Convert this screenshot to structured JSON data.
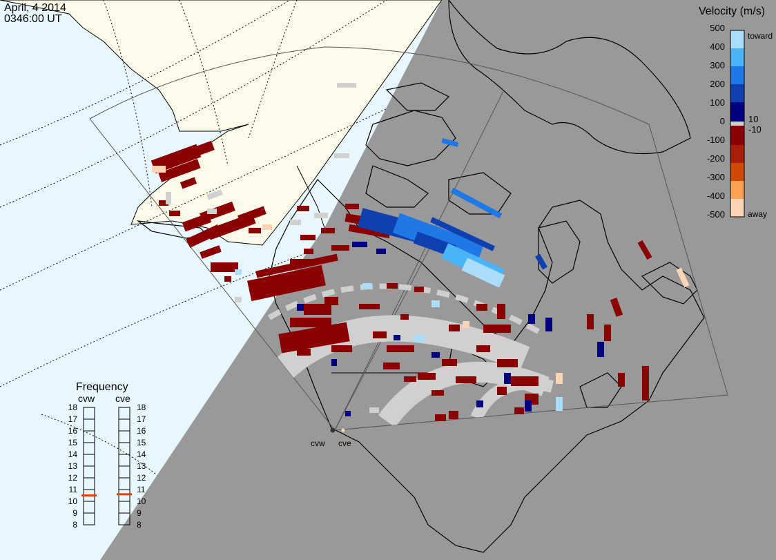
{
  "header": {
    "date": "April, 4 2014",
    "time": "0346:00 UT"
  },
  "velocity_scale": {
    "title": "Velocity (m/s)",
    "ticks": [
      "500",
      "400",
      "300",
      "200",
      "100",
      "0",
      "-100",
      "-200",
      "-300",
      "-400",
      "-500"
    ],
    "inner_ticks": [
      "10",
      "-10"
    ],
    "toward_label": "toward",
    "away_label": "away",
    "colors": [
      "#fcd4b4",
      "#ffa050",
      "#f27a10",
      "#d24a08",
      "#a82008",
      "#8b0000",
      "#cccccc",
      "#000080",
      "#1040b0",
      "#1e78e6",
      "#4ab4f8",
      "#aadcfc"
    ]
  },
  "frequency_panel": {
    "title": "Frequency",
    "ticks": [
      "18",
      "17",
      "16",
      "15",
      "14",
      "13",
      "12",
      "11",
      "10",
      "9",
      "8"
    ],
    "radars": [
      {
        "label": "cvw",
        "frequency_mhz": 10.5
      },
      {
        "label": "cve",
        "frequency_mhz": 10.6
      }
    ],
    "marker_color": "#e84010"
  },
  "radars": {
    "west_label": "cvw",
    "east_label": "cve"
  },
  "colors": {
    "ocean": "#e8f6fe",
    "land_day": "#fcfae8",
    "night": "#999999",
    "ground_scatter": "#d0d0d0"
  }
}
